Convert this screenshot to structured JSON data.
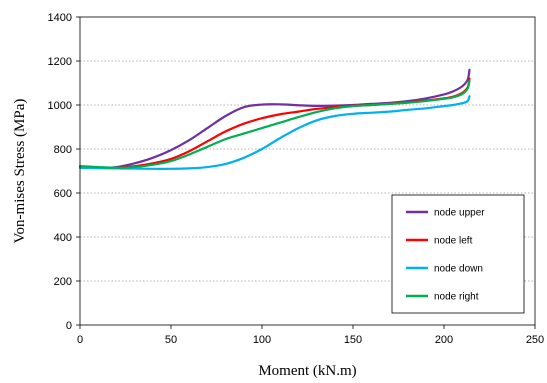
{
  "chart_data": {
    "type": "line",
    "xlabel": "Moment (kN.m)",
    "ylabel": "Von-mises Stress (MPa)",
    "xlim": [
      0,
      250
    ],
    "ylim": [
      0,
      1400
    ],
    "xticks": [
      0,
      50,
      100,
      150,
      200,
      250
    ],
    "yticks": [
      0,
      200,
      400,
      600,
      800,
      1000,
      1200,
      1400
    ],
    "grid": "horizontal dotted",
    "legend_position": "bottom-right",
    "series": [
      {
        "name": "node upper",
        "color": "#7030A0",
        "x": [
          0,
          10,
          20,
          30,
          40,
          50,
          60,
          70,
          80,
          90,
          100,
          110,
          120,
          130,
          140,
          150,
          160,
          170,
          180,
          190,
          200,
          205,
          210,
          213,
          214
        ],
        "y": [
          718,
          714,
          718,
          735,
          760,
          795,
          840,
          895,
          950,
          990,
          1002,
          1003,
          999,
          996,
          997,
          1000,
          1005,
          1010,
          1018,
          1030,
          1048,
          1062,
          1085,
          1115,
          1160
        ]
      },
      {
        "name": "node left",
        "color": "#FF0000",
        "x": [
          0,
          10,
          20,
          30,
          40,
          50,
          60,
          70,
          80,
          90,
          100,
          110,
          120,
          130,
          140,
          150,
          160,
          170,
          180,
          190,
          200,
          205,
          210,
          213,
          214
        ],
        "y": [
          718,
          714,
          715,
          722,
          735,
          755,
          790,
          835,
          880,
          915,
          940,
          958,
          970,
          982,
          990,
          996,
          1000,
          1005,
          1012,
          1020,
          1030,
          1038,
          1055,
          1080,
          1120
        ]
      },
      {
        "name": "node down",
        "color": "#00B0F0",
        "x": [
          0,
          10,
          20,
          30,
          40,
          50,
          60,
          70,
          80,
          90,
          100,
          110,
          120,
          130,
          140,
          150,
          160,
          170,
          180,
          190,
          200,
          205,
          210,
          213,
          214
        ],
        "y": [
          714,
          713,
          712,
          711,
          710,
          710,
          712,
          718,
          732,
          760,
          800,
          850,
          895,
          930,
          950,
          960,
          965,
          970,
          978,
          985,
          995,
          1000,
          1008,
          1018,
          1040
        ]
      },
      {
        "name": "node right",
        "color": "#00B050",
        "x": [
          0,
          10,
          20,
          30,
          40,
          50,
          60,
          70,
          80,
          90,
          100,
          110,
          120,
          130,
          140,
          150,
          160,
          170,
          180,
          190,
          200,
          205,
          210,
          213,
          214
        ],
        "y": [
          722,
          718,
          715,
          718,
          728,
          745,
          775,
          810,
          845,
          870,
          895,
          920,
          945,
          968,
          985,
          995,
          1000,
          1005,
          1010,
          1018,
          1028,
          1035,
          1050,
          1075,
          1110
        ]
      }
    ]
  }
}
